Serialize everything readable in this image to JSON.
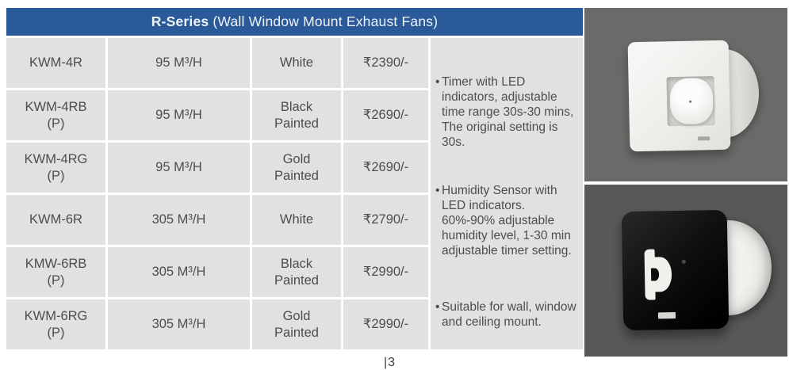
{
  "page": {
    "footer_page_number": "|3"
  },
  "table": {
    "title_bold": "R-Series",
    "title_rest": " (Wall Window Mount Exhaust Fans)",
    "rows": [
      {
        "model": "KWM-4R",
        "model_suffix": "",
        "airflow": "95 M³/H",
        "finish": "White",
        "price": "₹2390/-"
      },
      {
        "model": "KWM-4RB",
        "model_suffix": "(P)",
        "airflow": "95 M³/H",
        "finish": "Black Painted",
        "price": "₹2690/-"
      },
      {
        "model": "KWM-4RG",
        "model_suffix": "(P)",
        "airflow": "95 M³/H",
        "finish": "Gold Painted",
        "price": "₹2690/-"
      },
      {
        "model": "KWM-6R",
        "model_suffix": "",
        "airflow": "305 M³/H",
        "finish": "White",
        "price": "₹2790/-"
      },
      {
        "model": "KMW-6RB",
        "model_suffix": "(P)",
        "airflow": "305 M³/H",
        "finish": "Black Painted",
        "price": "₹2990/-"
      },
      {
        "model": "KWM-6RG",
        "model_suffix": "(P)",
        "airflow": "305 M³/H",
        "finish": "Gold Painted",
        "price": "₹2990/-"
      }
    ],
    "notes": [
      "Timer with LED indicators, adjustable time range 30s-30 mins, The original setting is 30s.",
      "Humidity Sensor with LED indicators. 60%-90% adjustable humidity level, 1-30 min adjustable timer setting.",
      "Suitable for wall, window and ceiling mount."
    ]
  },
  "images": {
    "top_alt": "White wall window mount exhaust fan",
    "bottom_alt": "Black wall window mount exhaust fan"
  },
  "colors": {
    "header_blue": "#2b5a9a",
    "cell_gray": "#e2e1df",
    "text_gray": "#4d4d4d",
    "photo_bg_top": "#6b6a68",
    "photo_bg_bottom": "#595757"
  }
}
